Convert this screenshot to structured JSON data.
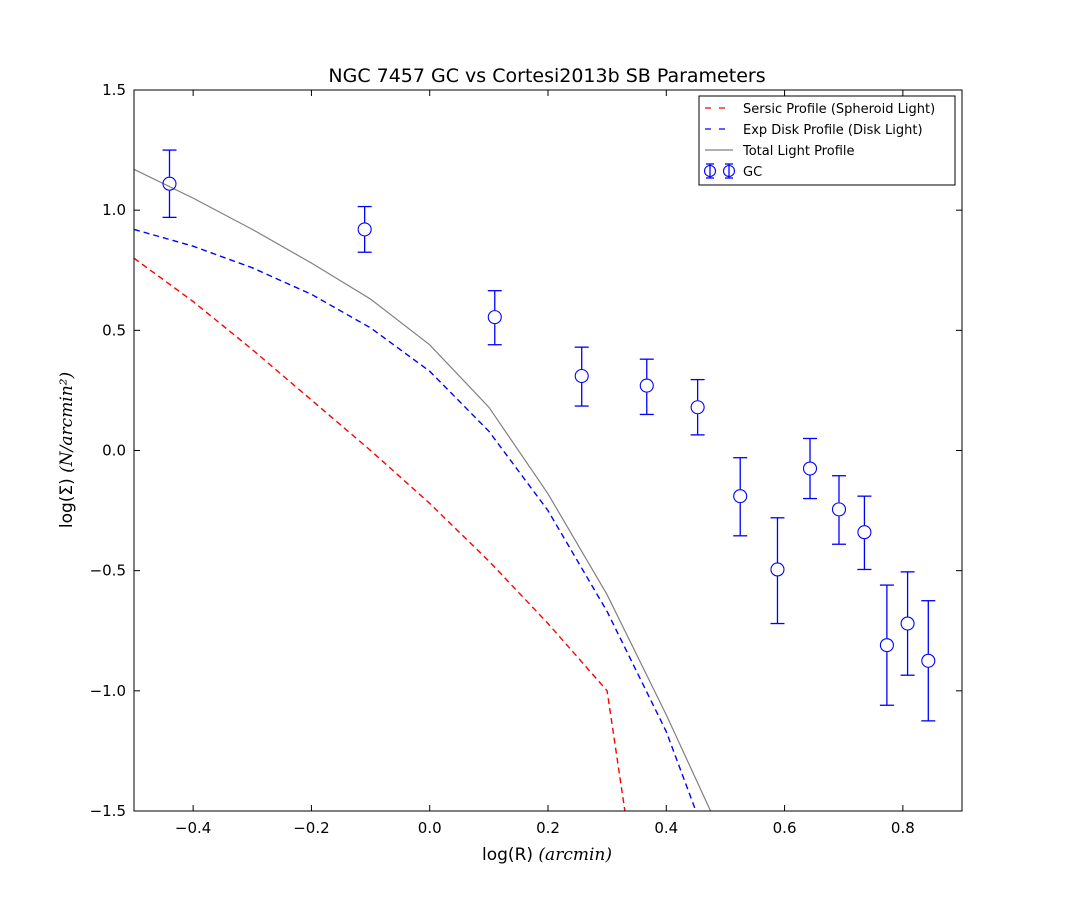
{
  "chart_data": {
    "type": "scatter",
    "title": "NGC 7457 GC vs Cortesi2013b SB Parameters",
    "xlabel_text": "log(R) ",
    "xlabel_math": "(arcmin)",
    "ylabel_text": "log(Σ) ",
    "ylabel_math": "(N/arcmin²)",
    "xlim": [
      -0.5,
      0.9
    ],
    "ylim": [
      -1.5,
      1.5
    ],
    "xticks": [
      -0.4,
      -0.2,
      0.0,
      0.2,
      0.4,
      0.6,
      0.8
    ],
    "xtick_labels": [
      "−0.4",
      "−0.2",
      "0.0",
      "0.2",
      "0.4",
      "0.6",
      "0.8"
    ],
    "yticks": [
      -1.5,
      -1.0,
      -0.5,
      0.0,
      0.5,
      1.0,
      1.5
    ],
    "ytick_labels": [
      "−1.5",
      "−1.0",
      "−0.5",
      "0.0",
      "0.5",
      "1.0",
      "1.5"
    ],
    "legend_position": "top-right",
    "series": [
      {
        "name": "Sersic Profile (Spheroid Light)",
        "kind": "line",
        "style": "dashed",
        "color": "#ff0000",
        "points": [
          [
            -0.5,
            0.8
          ],
          [
            -0.4,
            0.62
          ],
          [
            -0.3,
            0.42
          ],
          [
            -0.2,
            0.21
          ],
          [
            -0.1,
            0.0
          ],
          [
            0.0,
            -0.22
          ],
          [
            0.1,
            -0.46
          ],
          [
            0.2,
            -0.72
          ],
          [
            0.3,
            -1.0
          ],
          [
            0.33,
            -1.5
          ]
        ]
      },
      {
        "name": "Exp Disk Profile (Disk Light)",
        "kind": "line",
        "style": "dashed",
        "color": "#0000ff",
        "points": [
          [
            -0.5,
            0.92
          ],
          [
            -0.4,
            0.85
          ],
          [
            -0.3,
            0.76
          ],
          [
            -0.2,
            0.65
          ],
          [
            -0.1,
            0.51
          ],
          [
            0.0,
            0.33
          ],
          [
            0.1,
            0.08
          ],
          [
            0.2,
            -0.25
          ],
          [
            0.3,
            -0.67
          ],
          [
            0.4,
            -1.17
          ],
          [
            0.45,
            -1.5
          ]
        ]
      },
      {
        "name": "Total Light Profile",
        "kind": "line",
        "style": "solid",
        "color": "#808080",
        "points": [
          [
            -0.5,
            1.17
          ],
          [
            -0.4,
            1.05
          ],
          [
            -0.3,
            0.92
          ],
          [
            -0.2,
            0.78
          ],
          [
            -0.1,
            0.63
          ],
          [
            0.0,
            0.44
          ],
          [
            0.1,
            0.18
          ],
          [
            0.2,
            -0.18
          ],
          [
            0.3,
            -0.6
          ],
          [
            0.4,
            -1.1
          ],
          [
            0.475,
            -1.5
          ]
        ]
      },
      {
        "name": "GC",
        "kind": "errorbar",
        "color": "#0000ff",
        "points": [
          {
            "x": -0.44,
            "y": 1.11,
            "lo": 0.97,
            "hi": 1.25
          },
          {
            "x": -0.11,
            "y": 0.92,
            "lo": 0.825,
            "hi": 1.015
          },
          {
            "x": 0.11,
            "y": 0.555,
            "lo": 0.44,
            "hi": 0.665
          },
          {
            "x": 0.257,
            "y": 0.31,
            "lo": 0.185,
            "hi": 0.43
          },
          {
            "x": 0.367,
            "y": 0.27,
            "lo": 0.15,
            "hi": 0.38
          },
          {
            "x": 0.453,
            "y": 0.18,
            "lo": 0.065,
            "hi": 0.295
          },
          {
            "x": 0.525,
            "y": -0.19,
            "lo": -0.355,
            "hi": -0.03
          },
          {
            "x": 0.588,
            "y": -0.495,
            "lo": -0.72,
            "hi": -0.28
          },
          {
            "x": 0.643,
            "y": -0.075,
            "lo": -0.2,
            "hi": 0.05
          },
          {
            "x": 0.692,
            "y": -0.245,
            "lo": -0.39,
            "hi": -0.105
          },
          {
            "x": 0.735,
            "y": -0.34,
            "lo": -0.495,
            "hi": -0.19
          },
          {
            "x": 0.773,
            "y": -0.81,
            "lo": -1.06,
            "hi": -0.56
          },
          {
            "x": 0.808,
            "y": -0.72,
            "lo": -0.935,
            "hi": -0.505
          },
          {
            "x": 0.843,
            "y": -0.875,
            "lo": -1.125,
            "hi": -0.625
          }
        ]
      }
    ]
  }
}
